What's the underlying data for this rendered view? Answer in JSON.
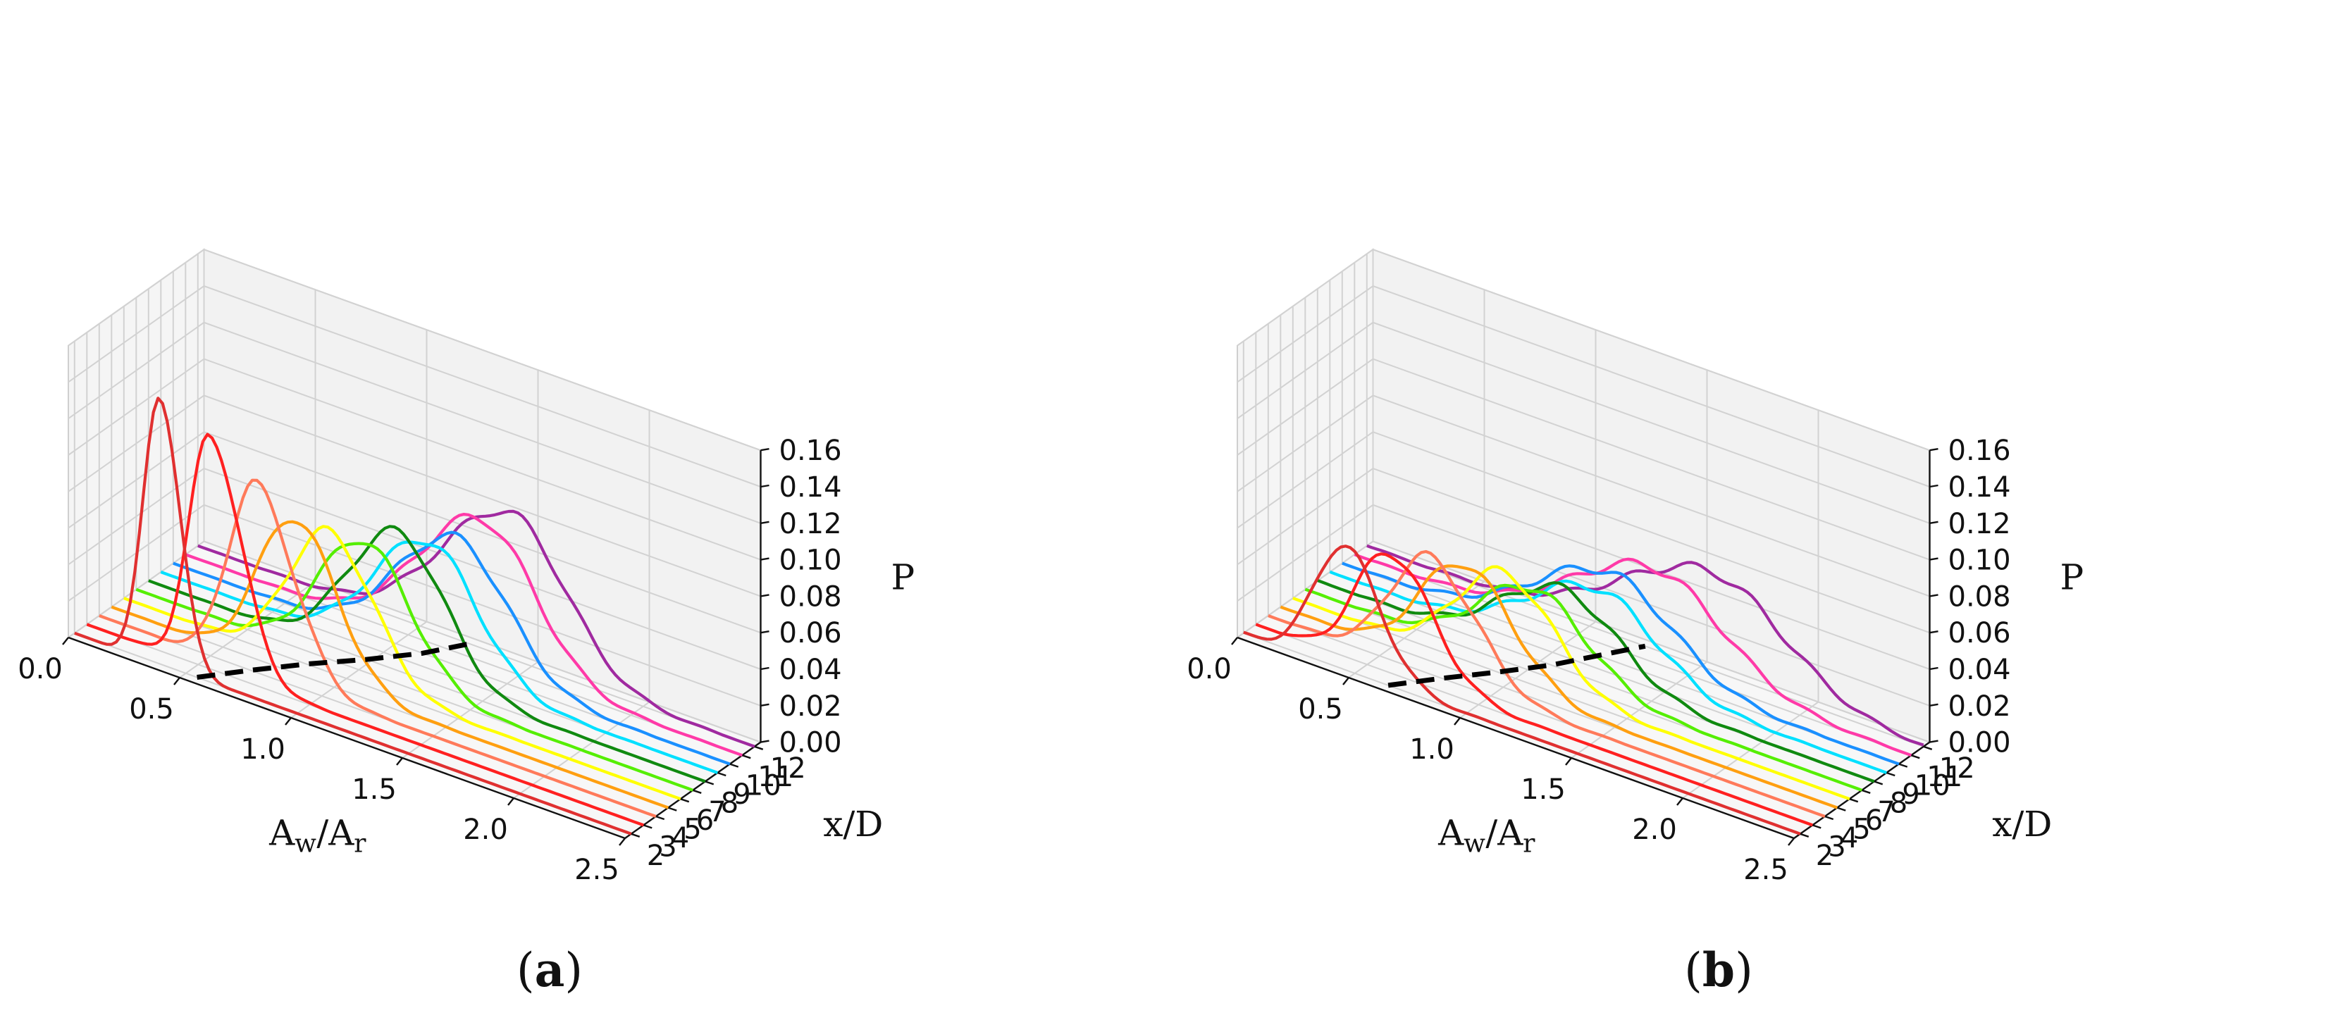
{
  "chart_data": [
    {
      "panel": "a",
      "panel_label": "a",
      "type": "line",
      "projection": "3d",
      "xlabel": {
        "base1": "A",
        "sub1": "w",
        "slash": "/",
        "base2": "A",
        "sub2": "r"
      },
      "ylabel": "x/D",
      "zlabel": "P",
      "xlim": [
        0,
        2.5
      ],
      "ylim": [
        1.5,
        12.5
      ],
      "zlim": [
        0,
        0.16
      ],
      "xticks": [
        "0.0",
        "0.5",
        "1.0",
        "1.5",
        "2.0",
        "2.5"
      ],
      "yticks": [
        "2",
        "3",
        "4",
        "5",
        "6",
        "7",
        "8",
        "9",
        "10",
        "11",
        "12"
      ],
      "zticks": [
        "0.00",
        "0.02",
        "0.04",
        "0.06",
        "0.08",
        "0.10",
        "0.12",
        "0.14",
        "0.16"
      ],
      "grid": true,
      "series": [
        {
          "name": "x/D = 2",
          "xd": 2,
          "color": "#e03030",
          "peak_x": 0.38,
          "peak": 0.148,
          "width_left": 0.07,
          "width_right": 0.09
        },
        {
          "name": "x/D = 3",
          "xd": 3,
          "color": "#ff2020",
          "peak_x": 0.55,
          "peak": 0.128,
          "width_left": 0.09,
          "width_right": 0.14
        },
        {
          "name": "x/D = 4",
          "xd": 4,
          "color": "#ff7a5a",
          "peak_x": 0.7,
          "peak": 0.103,
          "width_left": 0.12,
          "width_right": 0.17
        },
        {
          "name": "x/D = 5",
          "xd": 5,
          "color": "#ff9f10",
          "peak_x": 0.82,
          "peak": 0.085,
          "width_left": 0.16,
          "width_right": 0.19
        },
        {
          "name": "x/D = 6",
          "xd": 6,
          "color": "#ffff00",
          "peak_x": 0.92,
          "peak": 0.077,
          "width_left": 0.18,
          "width_right": 0.2
        },
        {
          "name": "x/D = 7",
          "xd": 7,
          "color": "#55ee00",
          "peak_x": 1.02,
          "peak": 0.072,
          "width_left": 0.2,
          "width_right": 0.21
        },
        {
          "name": "x/D = 8",
          "xd": 8,
          "color": "#108a10",
          "peak_x": 1.12,
          "peak": 0.076,
          "width_left": 0.22,
          "width_right": 0.21
        },
        {
          "name": "x/D = 9",
          "xd": 9,
          "color": "#00e0ff",
          "peak_x": 1.2,
          "peak": 0.07,
          "width_left": 0.24,
          "width_right": 0.22
        },
        {
          "name": "x/D = 10",
          "xd": 10,
          "color": "#1a90ff",
          "peak_x": 1.27,
          "peak": 0.07,
          "width_left": 0.26,
          "width_right": 0.23
        },
        {
          "name": "x/D = 11",
          "xd": 11,
          "color": "#ff3aa8",
          "peak_x": 1.33,
          "peak": 0.078,
          "width_left": 0.28,
          "width_right": 0.24
        },
        {
          "name": "x/D = 12",
          "xd": 12,
          "color": "#a02aa0",
          "peak_x": 1.4,
          "peak": 0.08,
          "width_left": 0.3,
          "width_right": 0.25
        }
      ],
      "dashed_curve": {
        "color": "#000000",
        "points": [
          [
            0.55,
            2
          ],
          [
            0.68,
            4
          ],
          [
            0.82,
            6
          ],
          [
            0.98,
            8
          ],
          [
            1.12,
            10
          ],
          [
            1.22,
            12
          ]
        ]
      }
    },
    {
      "panel": "b",
      "panel_label": "b",
      "type": "line",
      "projection": "3d",
      "xlabel": {
        "base1": "A",
        "sub1": "w",
        "slash": "/",
        "base2": "A",
        "sub2": "r"
      },
      "ylabel": "x/D",
      "zlabel": "P",
      "xlim": [
        0,
        2.5
      ],
      "ylim": [
        1.5,
        12.5
      ],
      "zlim": [
        0,
        0.16
      ],
      "xticks": [
        "0.0",
        "0.5",
        "1.0",
        "1.5",
        "2.0",
        "2.5"
      ],
      "yticks": [
        "2",
        "3",
        "4",
        "5",
        "6",
        "7",
        "8",
        "9",
        "10",
        "11",
        "12"
      ],
      "zticks": [
        "0.00",
        "0.02",
        "0.04",
        "0.06",
        "0.08",
        "0.10",
        "0.12",
        "0.14",
        "0.16"
      ],
      "grid": true,
      "series": [
        {
          "name": "x/D = 2",
          "xd": 2,
          "color": "#e03030",
          "peak_x": 0.45,
          "peak": 0.068,
          "width_left": 0.13,
          "width_right": 0.16
        },
        {
          "name": "x/D = 3",
          "xd": 3,
          "color": "#ff2020",
          "peak_x": 0.6,
          "peak": 0.066,
          "width_left": 0.15,
          "width_right": 0.19
        },
        {
          "name": "x/D = 4",
          "xd": 4,
          "color": "#ff7a5a",
          "peak_x": 0.72,
          "peak": 0.064,
          "width_left": 0.17,
          "width_right": 0.21
        },
        {
          "name": "x/D = 5",
          "xd": 5,
          "color": "#ff9f10",
          "peak_x": 0.82,
          "peak": 0.06,
          "width_left": 0.19,
          "width_right": 0.22
        },
        {
          "name": "x/D = 6",
          "xd": 6,
          "color": "#ffff00",
          "peak_x": 0.95,
          "peak": 0.056,
          "width_left": 0.21,
          "width_right": 0.22
        },
        {
          "name": "x/D = 7",
          "xd": 7,
          "color": "#55ee00",
          "peak_x": 1.02,
          "peak": 0.046,
          "width_left": 0.24,
          "width_right": 0.24
        },
        {
          "name": "x/D = 8",
          "xd": 8,
          "color": "#108a10",
          "peak_x": 1.1,
          "peak": 0.044,
          "width_left": 0.27,
          "width_right": 0.25
        },
        {
          "name": "x/D = 9",
          "xd": 9,
          "color": "#00e0ff",
          "peak_x": 1.2,
          "peak": 0.044,
          "width_left": 0.3,
          "width_right": 0.26
        },
        {
          "name": "x/D = 10",
          "xd": 10,
          "color": "#1a90ff",
          "peak_x": 1.2,
          "peak": 0.048,
          "width_left": 0.33,
          "width_right": 0.28
        },
        {
          "name": "x/D = 11",
          "xd": 11,
          "color": "#ff3aa8",
          "peak_x": 1.35,
          "peak": 0.052,
          "width_left": 0.36,
          "width_right": 0.3
        },
        {
          "name": "x/D = 12",
          "xd": 12,
          "color": "#a02aa0",
          "peak_x": 1.55,
          "peak": 0.054,
          "width_left": 0.4,
          "width_right": 0.32
        }
      ],
      "dashed_curve": {
        "color": "#000000",
        "points": [
          [
            0.65,
            2
          ],
          [
            0.78,
            4
          ],
          [
            0.92,
            6
          ],
          [
            1.05,
            8
          ],
          [
            1.15,
            10
          ],
          [
            1.25,
            12
          ]
        ]
      }
    }
  ]
}
